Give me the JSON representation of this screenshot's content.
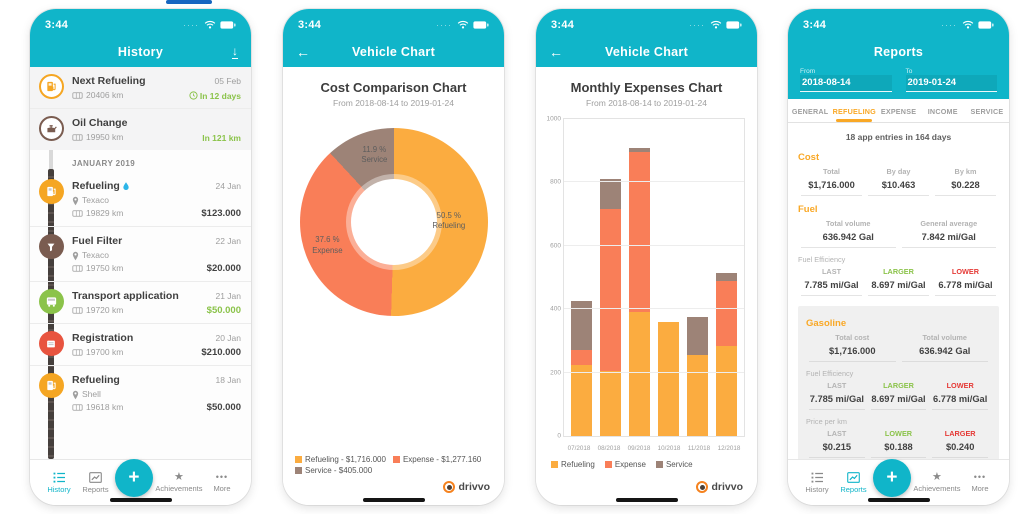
{
  "page": {
    "top_accent_color": "#1565C0"
  },
  "colors": {
    "accent_cyan": "#10B5C9",
    "accent_orange": "#F9A826",
    "green": "#8BC34A",
    "red": "#E53935",
    "brand_orange": "#F5821F"
  },
  "icons": {
    "back": "←",
    "download": "↓",
    "plus": "+",
    "star": "★",
    "more": "•••"
  },
  "status": {
    "time": "3:44",
    "signal_dots": "····"
  },
  "brand": {
    "name": "drivvo"
  },
  "tabbar": {
    "items": [
      "History",
      "Reports",
      "Achievements",
      "More"
    ]
  },
  "history": {
    "title": "History",
    "month_header": "JANUARY 2019",
    "reminders": [
      {
        "title": "Next Refueling",
        "date": "05 Feb",
        "odometer": "20406 km",
        "due": "In 12 days",
        "icon_color": "#F5A623"
      },
      {
        "title": "Oil Change",
        "date": "",
        "odometer": "19950 km",
        "due": "In 121 km",
        "icon_color": "#7A5C50"
      }
    ],
    "entries": [
      {
        "title": "Refueling",
        "date": "24 Jan",
        "location": "Texaco",
        "odometer": "19829 km",
        "cost": "$123.000",
        "icon_color": "#F5A623",
        "cost_color": "#424242"
      },
      {
        "title": "Fuel Filter",
        "date": "22 Jan",
        "location": "Texaco",
        "odometer": "19750 km",
        "cost": "$20.000",
        "icon_color": "#7A5C50",
        "cost_color": "#424242"
      },
      {
        "title": "Transport application",
        "date": "21 Jan",
        "odometer": "19720 km",
        "cost": "$50.000",
        "icon_color": "#8BC34A",
        "cost_color": "#8BC34A"
      },
      {
        "title": "Registration",
        "date": "20 Jan",
        "odometer": "19700 km",
        "cost": "$210.000",
        "icon_color": "#E8543F",
        "cost_color": "#424242"
      },
      {
        "title": "Refueling",
        "date": "18 Jan",
        "location": "Shell",
        "odometer": "19618 km",
        "cost": "$50.000",
        "icon_color": "#F5A623",
        "cost_color": "#424242"
      }
    ]
  },
  "vehicle_chart": {
    "nav_title": "Vehicle Chart"
  },
  "chart_data": [
    {
      "type": "pie",
      "donut": true,
      "title": "Cost Comparison Chart",
      "subtitle": "From 2018-08-14 to 2019-01-24",
      "legend_position": "bottom",
      "slices": [
        {
          "label": "Refueling",
          "percent": 50.5,
          "percent_text": "50.5 %",
          "amount": "$1,716.000",
          "legend_text": "Refueling - $1,716.000",
          "color": "#FBAC40"
        },
        {
          "label": "Expense",
          "percent": 37.6,
          "percent_text": "37.6 %",
          "amount": "$1,277.160",
          "legend_text": "Expense - $1,277.160",
          "color": "#F97E58"
        },
        {
          "label": "Service",
          "percent": 11.9,
          "percent_text": "11.9 %",
          "amount": "$405.000",
          "legend_text": "Service - $405.000",
          "color": "#9D8377"
        }
      ]
    },
    {
      "type": "bar",
      "stacked": true,
      "title": "Monthly Expenses Chart",
      "subtitle": "From 2018-08-14 to 2019-01-24",
      "categories": [
        "07/2018",
        "08/2018",
        "09/2018",
        "10/2018",
        "11/2018",
        "12/2018"
      ],
      "series": [
        {
          "name": "Refueling",
          "color": "#FBAC40",
          "values": [
            225,
            205,
            390,
            360,
            255,
            285
          ]
        },
        {
          "name": "Expense",
          "color": "#F97E58",
          "values": [
            45,
            510,
            505,
            0,
            0,
            205
          ]
        },
        {
          "name": "Service",
          "color": "#9D8377",
          "values": [
            155,
            95,
            15,
            0,
            120,
            25
          ]
        }
      ],
      "ylim": [
        0,
        1000
      ],
      "yticks": [
        0,
        200,
        400,
        600,
        800,
        1000
      ],
      "grid": true,
      "legend_position": "bottom"
    }
  ],
  "reports": {
    "title": "Reports",
    "from_label": "From",
    "from_value": "2018-08-14",
    "to_label": "To",
    "to_value": "2019-01-24",
    "tabs": [
      "GENERAL",
      "REFUELING",
      "EXPENSE",
      "INCOME",
      "SERVICE"
    ],
    "active_tab": "REFUELING",
    "summary": "18 app entries in 164 days",
    "cost": {
      "heading": "Cost",
      "cells": [
        {
          "label": "Total",
          "value": "$1,716.000",
          "label_color": "#b3b3b3"
        },
        {
          "label": "By day",
          "value": "$10.463",
          "label_color": "#b3b3b3"
        },
        {
          "label": "By km",
          "value": "$0.228",
          "label_color": "#b3b3b3"
        }
      ]
    },
    "fuel": {
      "heading": "Fuel",
      "cells": [
        {
          "label": "Total volume",
          "value": "636.942 Gal",
          "label_color": "#b3b3b3"
        },
        {
          "label": "General average",
          "value": "7.842 mi/Gal",
          "label_color": "#b3b3b3"
        }
      ]
    },
    "fuel_efficiency": {
      "heading": "Fuel Efficiency",
      "cells": [
        {
          "label": "LAST",
          "value": "7.785 mi/Gal",
          "label_color": "#b3b3b3"
        },
        {
          "label": "LARGER",
          "value": "8.697 mi/Gal",
          "label_color": "#8BC34A"
        },
        {
          "label": "LOWER",
          "value": "6.778 mi/Gal",
          "label_color": "#E53935"
        }
      ]
    },
    "gasoline": {
      "heading": "Gasoline",
      "totals": [
        {
          "label": "Total cost",
          "value": "$1,716.000",
          "label_color": "#b3b3b3"
        },
        {
          "label": "Total volume",
          "value": "636.942 Gal",
          "label_color": "#b3b3b3"
        }
      ],
      "fuel_efficiency": {
        "heading": "Fuel Efficiency",
        "cells": [
          {
            "label": "LAST",
            "value": "7.785 mi/Gal",
            "label_color": "#b3b3b3"
          },
          {
            "label": "LARGER",
            "value": "8.697 mi/Gal",
            "label_color": "#8BC34A"
          },
          {
            "label": "LOWER",
            "value": "6.778 mi/Gal",
            "label_color": "#E53935"
          }
        ]
      },
      "price_per_km": {
        "heading": "Price per km",
        "cells": [
          {
            "label": "LAST",
            "value": "$0.215",
            "label_color": "#b3b3b3"
          },
          {
            "label": "LOWER",
            "value": "$0.188",
            "label_color": "#8BC34A"
          },
          {
            "label": "LARGER",
            "value": "$0.240",
            "label_color": "#E53935"
          }
        ]
      }
    }
  }
}
